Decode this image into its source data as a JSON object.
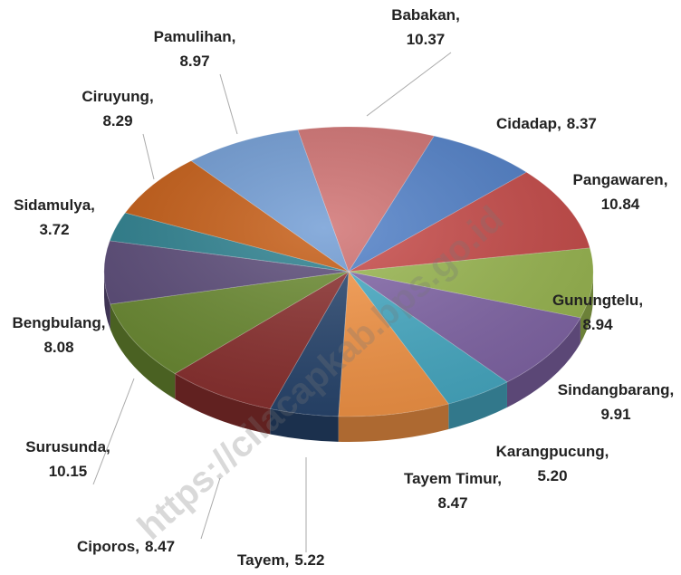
{
  "chart_data": {
    "type": "pie",
    "categories": [
      "Babakan",
      "Cidadap",
      "Pangawaren",
      "Gunungtelu",
      "Sindangbarang",
      "Karangpucung",
      "Tayem Timur",
      "Tayem",
      "Ciporos",
      "Surusunda",
      "Bengbulang",
      "Sidamulya",
      "Ciruyung",
      "Pamulihan"
    ],
    "values": [
      10.37,
      8.37,
      10.84,
      8.94,
      9.91,
      5.2,
      8.47,
      5.22,
      8.47,
      10.15,
      8.08,
      3.72,
      8.29,
      8.97
    ],
    "value_labels": [
      "10.37",
      "8.37",
      "10.84",
      "8.94",
      "9.91",
      "5.20",
      "8.47",
      "5.22",
      "8.47",
      "10.15",
      "8.08",
      "3.72",
      "8.29",
      "8.97"
    ],
    "colors": [
      "#d07070",
      "#4f7fc8",
      "#c84a48",
      "#9ab850",
      "#8266a8",
      "#47acc6",
      "#f79646",
      "#27456e",
      "#8b2f2e",
      "#6a8a30",
      "#5a4a78",
      "#2a7f8e",
      "#c55a11",
      "#6f9bd4"
    ],
    "watermark": "https://cilacapkab.bps.go.id"
  }
}
